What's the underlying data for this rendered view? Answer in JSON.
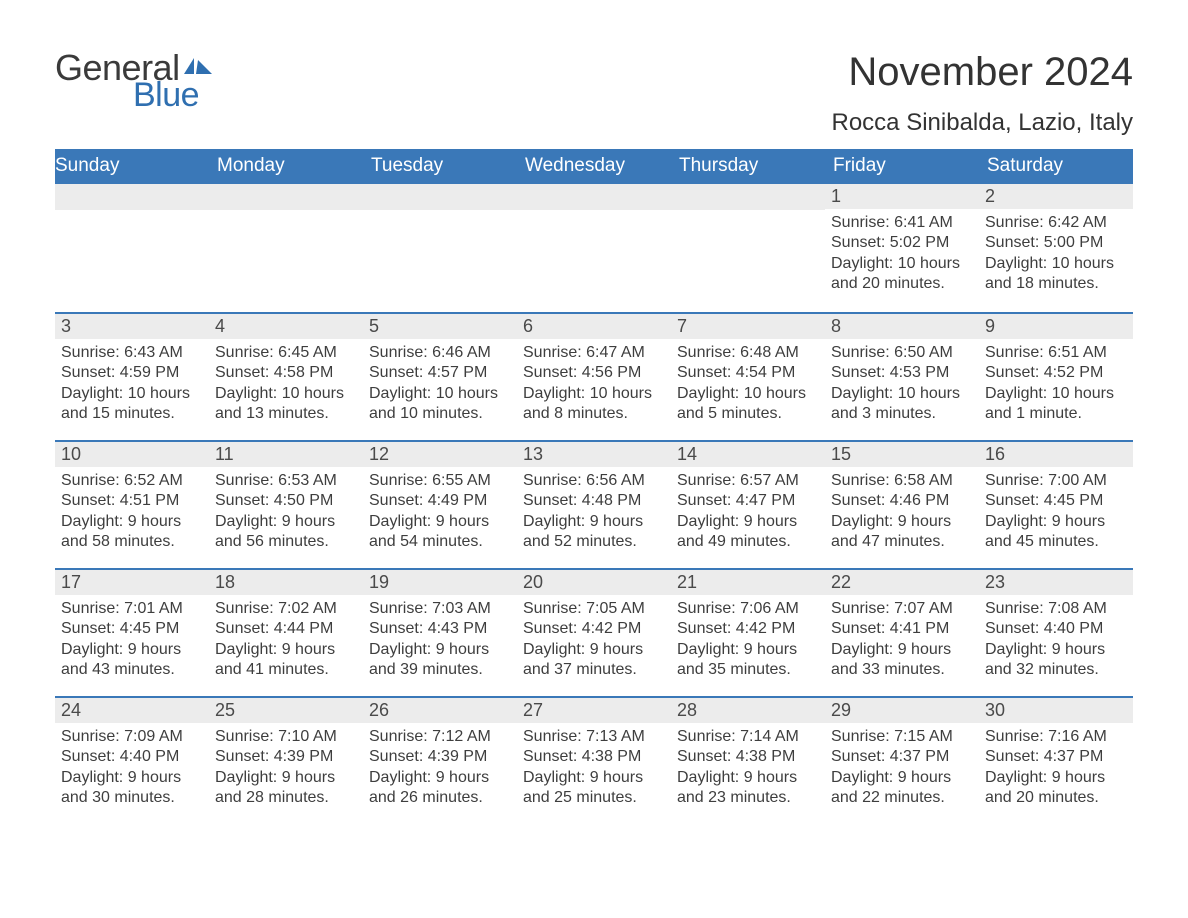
{
  "logo": {
    "text1": "General",
    "text2": "Blue",
    "flag_color": "#2f6fb0"
  },
  "title": "November 2024",
  "location": "Rocca Sinibalda, Lazio, Italy",
  "colors": {
    "header_bg": "#3a78b8",
    "header_text": "#ffffff",
    "daybar_bg": "#ececec",
    "daybar_border": "#3a78b8",
    "body_text": "#3e3e3e",
    "logo_blue": "#2f6fb0"
  },
  "day_names": [
    "Sunday",
    "Monday",
    "Tuesday",
    "Wednesday",
    "Thursday",
    "Friday",
    "Saturday"
  ],
  "weeks": [
    [
      null,
      null,
      null,
      null,
      null,
      {
        "n": "1",
        "sr": "6:41 AM",
        "ss": "5:02 PM",
        "dl": "10 hours and 20 minutes."
      },
      {
        "n": "2",
        "sr": "6:42 AM",
        "ss": "5:00 PM",
        "dl": "10 hours and 18 minutes."
      }
    ],
    [
      {
        "n": "3",
        "sr": "6:43 AM",
        "ss": "4:59 PM",
        "dl": "10 hours and 15 minutes."
      },
      {
        "n": "4",
        "sr": "6:45 AM",
        "ss": "4:58 PM",
        "dl": "10 hours and 13 minutes."
      },
      {
        "n": "5",
        "sr": "6:46 AM",
        "ss": "4:57 PM",
        "dl": "10 hours and 10 minutes."
      },
      {
        "n": "6",
        "sr": "6:47 AM",
        "ss": "4:56 PM",
        "dl": "10 hours and 8 minutes."
      },
      {
        "n": "7",
        "sr": "6:48 AM",
        "ss": "4:54 PM",
        "dl": "10 hours and 5 minutes."
      },
      {
        "n": "8",
        "sr": "6:50 AM",
        "ss": "4:53 PM",
        "dl": "10 hours and 3 minutes."
      },
      {
        "n": "9",
        "sr": "6:51 AM",
        "ss": "4:52 PM",
        "dl": "10 hours and 1 minute."
      }
    ],
    [
      {
        "n": "10",
        "sr": "6:52 AM",
        "ss": "4:51 PM",
        "dl": "9 hours and 58 minutes."
      },
      {
        "n": "11",
        "sr": "6:53 AM",
        "ss": "4:50 PM",
        "dl": "9 hours and 56 minutes."
      },
      {
        "n": "12",
        "sr": "6:55 AM",
        "ss": "4:49 PM",
        "dl": "9 hours and 54 minutes."
      },
      {
        "n": "13",
        "sr": "6:56 AM",
        "ss": "4:48 PM",
        "dl": "9 hours and 52 minutes."
      },
      {
        "n": "14",
        "sr": "6:57 AM",
        "ss": "4:47 PM",
        "dl": "9 hours and 49 minutes."
      },
      {
        "n": "15",
        "sr": "6:58 AM",
        "ss": "4:46 PM",
        "dl": "9 hours and 47 minutes."
      },
      {
        "n": "16",
        "sr": "7:00 AM",
        "ss": "4:45 PM",
        "dl": "9 hours and 45 minutes."
      }
    ],
    [
      {
        "n": "17",
        "sr": "7:01 AM",
        "ss": "4:45 PM",
        "dl": "9 hours and 43 minutes."
      },
      {
        "n": "18",
        "sr": "7:02 AM",
        "ss": "4:44 PM",
        "dl": "9 hours and 41 minutes."
      },
      {
        "n": "19",
        "sr": "7:03 AM",
        "ss": "4:43 PM",
        "dl": "9 hours and 39 minutes."
      },
      {
        "n": "20",
        "sr": "7:05 AM",
        "ss": "4:42 PM",
        "dl": "9 hours and 37 minutes."
      },
      {
        "n": "21",
        "sr": "7:06 AM",
        "ss": "4:42 PM",
        "dl": "9 hours and 35 minutes."
      },
      {
        "n": "22",
        "sr": "7:07 AM",
        "ss": "4:41 PM",
        "dl": "9 hours and 33 minutes."
      },
      {
        "n": "23",
        "sr": "7:08 AM",
        "ss": "4:40 PM",
        "dl": "9 hours and 32 minutes."
      }
    ],
    [
      {
        "n": "24",
        "sr": "7:09 AM",
        "ss": "4:40 PM",
        "dl": "9 hours and 30 minutes."
      },
      {
        "n": "25",
        "sr": "7:10 AM",
        "ss": "4:39 PM",
        "dl": "9 hours and 28 minutes."
      },
      {
        "n": "26",
        "sr": "7:12 AM",
        "ss": "4:39 PM",
        "dl": "9 hours and 26 minutes."
      },
      {
        "n": "27",
        "sr": "7:13 AM",
        "ss": "4:38 PM",
        "dl": "9 hours and 25 minutes."
      },
      {
        "n": "28",
        "sr": "7:14 AM",
        "ss": "4:38 PM",
        "dl": "9 hours and 23 minutes."
      },
      {
        "n": "29",
        "sr": "7:15 AM",
        "ss": "4:37 PM",
        "dl": "9 hours and 22 minutes."
      },
      {
        "n": "30",
        "sr": "7:16 AM",
        "ss": "4:37 PM",
        "dl": "9 hours and 20 minutes."
      }
    ]
  ],
  "labels": {
    "sunrise": "Sunrise:",
    "sunset": "Sunset:",
    "daylight": "Daylight:"
  }
}
